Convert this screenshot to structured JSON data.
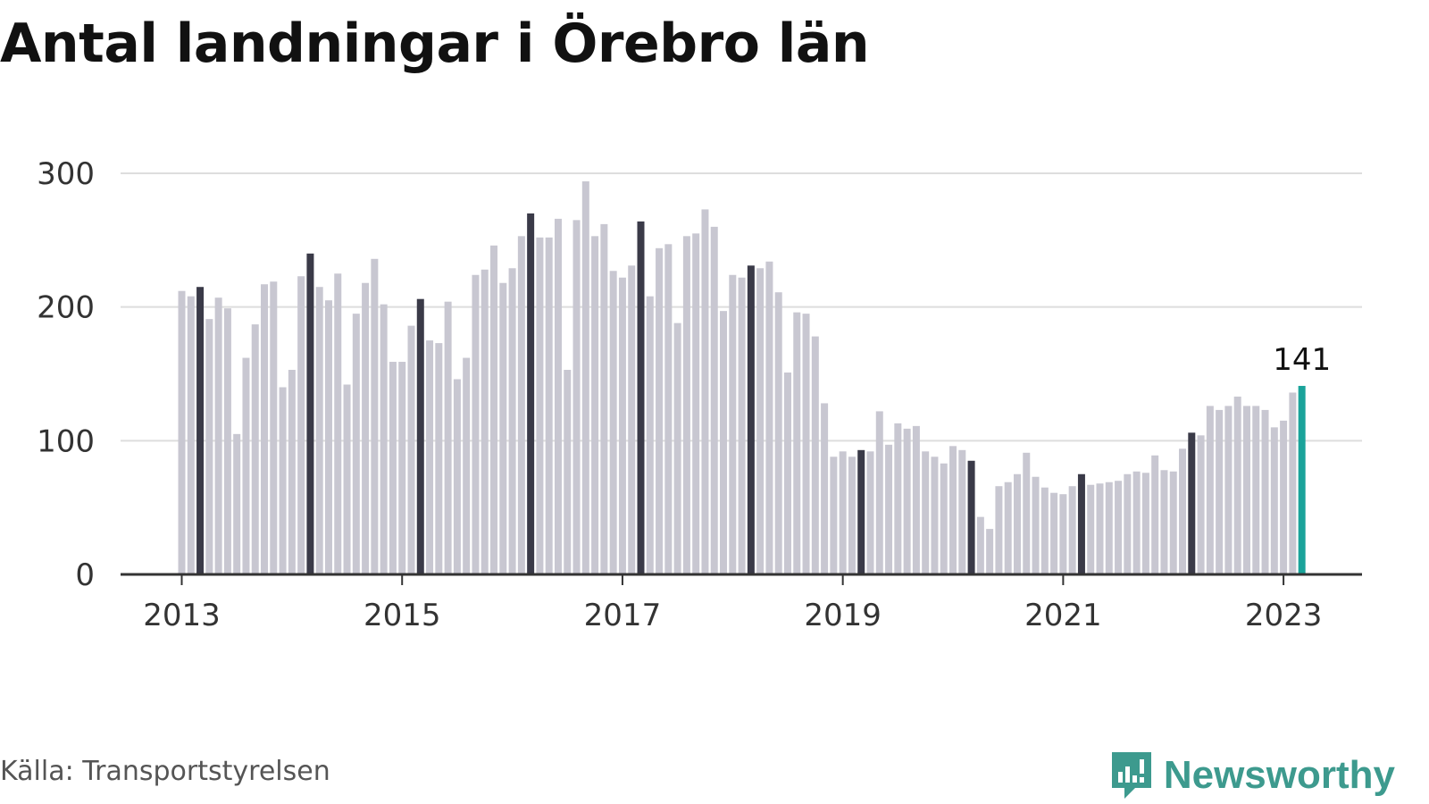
{
  "title": "Antal landningar i Örebro län",
  "source": "Källa: Transportstyrelsen",
  "brand": {
    "name": "Newsworthy",
    "icon": "newsworthy-logo-icon",
    "color": "#3d9a8e"
  },
  "colors": {
    "bar": "#c8c7d1",
    "march": "#3a3a48",
    "latest": "#1aa39a",
    "grid": "#dddddd",
    "axis": "#333333"
  },
  "chart_data": {
    "type": "bar",
    "title": "Antal landningar i Örebro län",
    "xlabel": "",
    "ylabel": "",
    "ylim": [
      0,
      300
    ],
    "yticks": [
      0,
      100,
      200,
      300
    ],
    "grid": true,
    "x_tick_labels": [
      "2013",
      "2015",
      "2017",
      "2019",
      "2021",
      "2023"
    ],
    "start": "2013-01",
    "end": "2023-03",
    "highlight_month": "March",
    "latest_label": "141",
    "values": [
      212,
      208,
      215,
      191,
      207,
      199,
      105,
      162,
      187,
      217,
      219,
      140,
      153,
      223,
      240,
      215,
      205,
      225,
      142,
      195,
      218,
      236,
      202,
      159,
      159,
      186,
      206,
      175,
      173,
      204,
      146,
      162,
      224,
      228,
      246,
      218,
      229,
      253,
      270,
      252,
      252,
      266,
      153,
      265,
      294,
      253,
      262,
      227,
      222,
      231,
      264,
      208,
      244,
      247,
      188,
      253,
      255,
      273,
      260,
      197,
      224,
      222,
      231,
      229,
      234,
      211,
      151,
      196,
      195,
      178,
      128,
      88,
      92,
      88,
      93,
      92,
      122,
      97,
      113,
      109,
      111,
      92,
      88,
      83,
      96,
      93,
      85,
      43,
      34,
      66,
      69,
      75,
      91,
      73,
      65,
      61,
      60,
      66,
      75,
      67,
      68,
      69,
      70,
      75,
      77,
      76,
      89,
      78,
      77,
      94,
      106,
      104,
      126,
      123,
      126,
      133,
      126,
      126,
      123,
      110,
      115,
      136,
      141
    ]
  }
}
